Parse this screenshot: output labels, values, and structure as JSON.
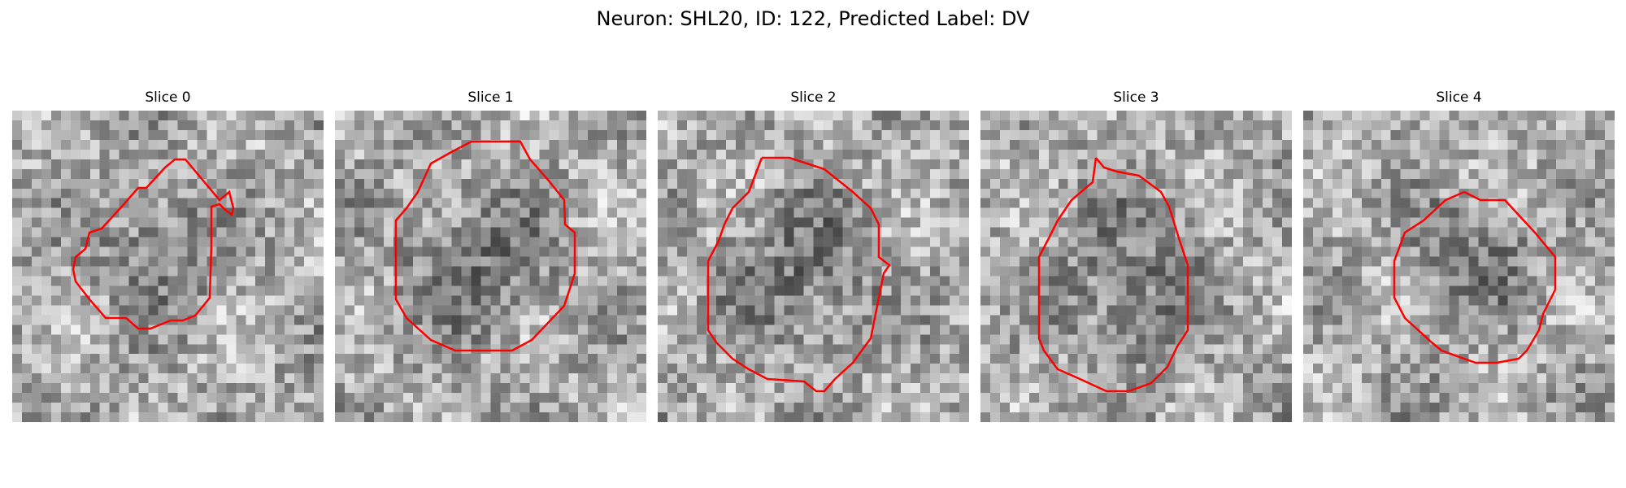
{
  "title": "Neuron: SHL20, ID: 122, Predicted Label: DV",
  "panels": [
    {
      "title": "Slice 0"
    },
    {
      "title": "Slice 1"
    },
    {
      "title": "Slice 2"
    },
    {
      "title": "Slice 3"
    },
    {
      "title": "Slice 4"
    }
  ],
  "colors": {
    "contour": "#ff0000"
  }
}
